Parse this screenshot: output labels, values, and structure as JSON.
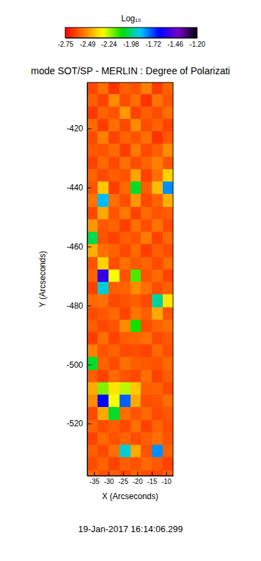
{
  "chart_data": {
    "type": "heatmap",
    "title": "mode SOT/SP - MERLIN : Degree of Polarizati",
    "annotations": [
      "19-Jan-2017 16:14:06.299"
    ],
    "x_label": "X (Arcseconds)",
    "y_label": "Y (Arcseconds)",
    "xlim": [
      -37.4,
      -7.6
    ],
    "ylim": [
      -537.7,
      -404.4
    ],
    "xticks": [
      -35,
      -30,
      -25,
      -20,
      -15,
      -10
    ],
    "yticks": [
      -520,
      -500,
      -480,
      -460,
      -440,
      -420
    ],
    "colorbar_title": "Log₁₀",
    "colorbar_range": [
      -2.75,
      -1.2
    ],
    "colorbar_ticks": [
      -2.75,
      -2.49,
      -2.24,
      -1.98,
      -1.72,
      -1.46,
      {
        "value": -1.2,
        "label": "-1.20"
      }
    ],
    "x": [
      -35.625,
      -31.875,
      -28.125,
      -24.375,
      -20.625,
      -16.875,
      -13.125,
      -9.375
    ],
    "y": [
      -406.125,
      -410.375,
      -414.625,
      -418.875,
      -423.125,
      -427.375,
      -431.625,
      -435.875,
      -440.125,
      -444.375,
      -448.625,
      -452.875,
      -457.125,
      -461.375,
      -465.625,
      -469.875,
      -474.125,
      -478.375,
      -482.625,
      -486.875,
      -491.125,
      -495.375,
      -499.625,
      -503.875,
      -508.125,
      -512.375,
      -516.625,
      -520.875,
      -525.125,
      -529.375,
      -533.625,
      -537.875
    ],
    "z": [
      [
        -2.62,
        -2.55,
        -2.66,
        -2.58,
        -2.6,
        -2.52,
        -2.64,
        -2.57
      ],
      [
        -2.58,
        -2.63,
        -2.5,
        -2.61,
        -2.55,
        -2.66,
        -2.54,
        -2.6
      ],
      [
        -2.65,
        -2.57,
        -2.6,
        -2.48,
        -2.63,
        -2.58,
        -2.61,
        -2.55
      ],
      [
        -2.56,
        -2.64,
        -2.55,
        -2.62,
        -2.5,
        -2.61,
        -2.57,
        -2.63
      ],
      [
        -2.61,
        -2.52,
        -2.63,
        -2.57,
        -2.6,
        -2.55,
        -2.66,
        -2.59
      ],
      [
        -2.59,
        -2.6,
        -2.56,
        -2.64,
        -2.53,
        -2.62,
        -2.58,
        -2.5
      ],
      [
        -2.63,
        -2.56,
        -2.62,
        -2.55,
        -2.61,
        -2.57,
        -2.52,
        -2.6
      ],
      [
        -2.57,
        -2.62,
        -2.58,
        -2.6,
        -2.46,
        -2.63,
        -2.55,
        -2.38
      ],
      [
        -2.6,
        -2.4,
        -2.64,
        -2.56,
        -2.05,
        -2.58,
        -2.42,
        -1.8
      ],
      [
        -2.54,
        -1.85,
        -2.55,
        -2.61,
        -2.48,
        -2.62,
        -2.57,
        -2.44
      ],
      [
        -2.62,
        -2.45,
        -2.6,
        -2.53,
        -2.63,
        -2.56,
        -2.6,
        -2.58
      ],
      [
        -2.48,
        -2.59,
        -2.57,
        -2.64,
        -2.55,
        -2.61,
        -2.54,
        -2.62
      ],
      [
        -2.02,
        -2.6,
        -2.63,
        -2.58,
        -2.6,
        -2.53,
        -2.63,
        -2.56
      ],
      [
        -2.44,
        -2.55,
        -2.57,
        -2.62,
        -2.56,
        -2.64,
        -2.58,
        -2.61
      ],
      [
        -2.6,
        -2.38,
        -2.61,
        -2.55,
        -2.59,
        -2.57,
        -2.62,
        -2.55
      ],
      [
        -2.57,
        -1.55,
        -2.3,
        -2.6,
        -2.15,
        -2.6,
        -2.56,
        -2.63
      ],
      [
        -2.63,
        -1.9,
        -2.58,
        -2.57,
        -2.5,
        -2.55,
        -2.61,
        -2.58
      ],
      [
        -2.56,
        -2.55,
        -2.62,
        -2.6,
        -2.58,
        -2.62,
        -1.95,
        -2.35
      ],
      [
        -2.61,
        -2.59,
        -2.56,
        -2.63,
        -2.54,
        -2.58,
        -2.45,
        -2.6
      ],
      [
        -2.58,
        -2.62,
        -2.6,
        -2.5,
        -2.1,
        -2.61,
        -2.57,
        -2.55
      ],
      [
        -2.64,
        -2.55,
        -2.63,
        -2.58,
        -2.57,
        -2.55,
        -2.62,
        -2.59
      ],
      [
        -2.52,
        -2.6,
        -2.57,
        -2.62,
        -2.61,
        -2.63,
        -2.56,
        -2.61
      ],
      [
        -2.05,
        -2.57,
        -2.61,
        -2.55,
        -2.58,
        -2.59,
        -2.6,
        -2.56
      ],
      [
        -2.58,
        -2.63,
        -2.56,
        -2.6,
        -2.62,
        -2.55,
        -2.63,
        -2.58
      ],
      [
        -2.45,
        -2.2,
        -2.35,
        -2.25,
        -2.4,
        -2.58,
        -2.57,
        -2.62
      ],
      [
        -2.5,
        -1.65,
        -2.3,
        -1.75,
        -2.45,
        -2.61,
        -2.6,
        -2.55
      ],
      [
        -2.62,
        -2.45,
        -2.05,
        -2.55,
        -2.6,
        -2.56,
        -2.62,
        -2.59
      ],
      [
        -2.57,
        -2.61,
        -2.58,
        -2.62,
        -2.55,
        -2.63,
        -2.57,
        -2.61
      ],
      [
        -2.63,
        -2.56,
        -2.6,
        -2.57,
        -2.61,
        -2.58,
        -2.55,
        -2.6
      ],
      [
        -2.58,
        -2.62,
        -2.55,
        -1.9,
        -2.45,
        -2.6,
        -1.8,
        -2.57
      ],
      [
        -2.61,
        -2.57,
        -2.63,
        -2.58,
        -2.6,
        -2.56,
        -2.59,
        -2.63
      ],
      [
        -2.56,
        -2.6,
        -2.58,
        -2.62,
        -2.57,
        -2.61,
        -2.62,
        -2.58
      ]
    ]
  }
}
